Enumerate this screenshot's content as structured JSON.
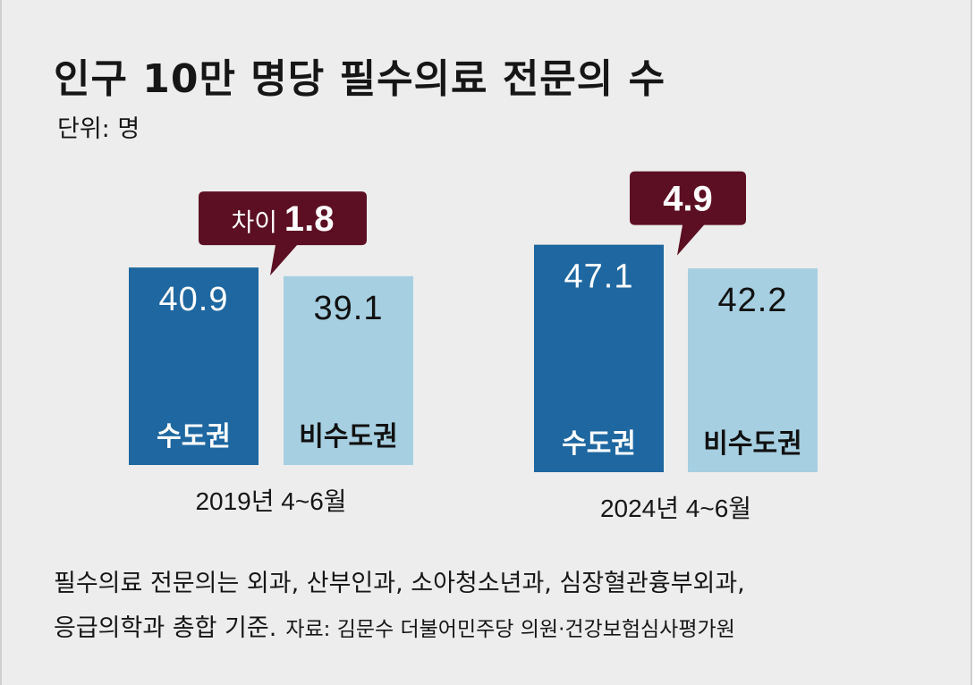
{
  "title": "인구 10만 명당 필수의료 전문의 수",
  "unit": "단위: 명",
  "colors": {
    "background": "#ededed",
    "capital": "#1e67a0",
    "non_capital": "#a6cfe1",
    "callout": "#5c0f22"
  },
  "chart_data": {
    "type": "bar",
    "title": "인구 10만 명당 필수의료 전문의 수",
    "ylabel": "",
    "ylim": [
      0,
      50
    ],
    "categories": [
      "2019년 4~6월",
      "2024년 4~6월"
    ],
    "series": [
      {
        "name": "수도권",
        "values": [
          40.9,
          47.1
        ]
      },
      {
        "name": "비수도권",
        "values": [
          39.1,
          42.2
        ]
      }
    ],
    "annotations": [
      {
        "category": "2019년 4~6월",
        "prefix": "차이",
        "value": "1.8"
      },
      {
        "category": "2024년 4~6월",
        "prefix": "",
        "value": "4.9"
      }
    ],
    "grid": false,
    "legend": "in-bar"
  },
  "footnote": {
    "line1": "필수의료 전문의는 외과, 산부인과, 소아청소년과, 심장혈관흉부외과,",
    "line2": "응급의학과 총합 기준.",
    "source": "자료: 김문수 더불어민주당 의원·건강보험심사평가원"
  }
}
